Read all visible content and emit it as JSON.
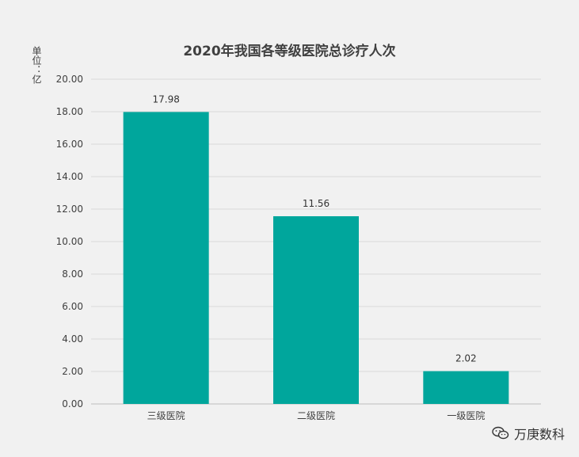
{
  "chart_data": {
    "type": "bar",
    "title": "2020年我国各等级医院总诊疗人次",
    "ylabel": "单位：亿",
    "xlabel": "",
    "categories": [
      "三级医院",
      "二级医院",
      "一级医院"
    ],
    "values": [
      17.98,
      11.56,
      2.02
    ],
    "value_labels": [
      "17.98",
      "11.56",
      "2.02"
    ],
    "ylim": [
      0,
      20
    ],
    "yticks": [
      "0.00",
      "2.00",
      "4.00",
      "6.00",
      "8.00",
      "10.00",
      "12.00",
      "14.00",
      "16.00",
      "18.00",
      "20.00"
    ],
    "grid": true,
    "bar_color": "#00a69c"
  },
  "watermark": {
    "text": "万庚数科",
    "icon": "wechat-icon"
  }
}
